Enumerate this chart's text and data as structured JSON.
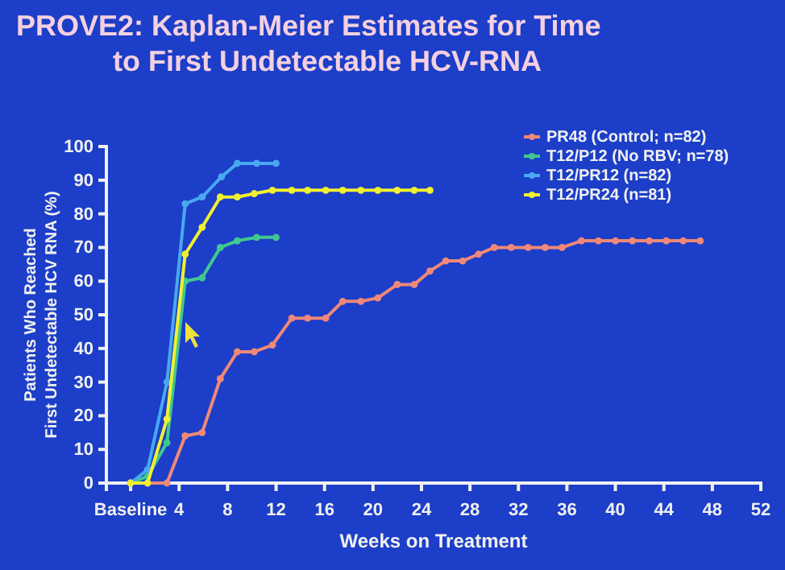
{
  "chart_data": {
    "type": "line",
    "title": "PROVE2: Kaplan-Meier Estimates for Time to First Undetectable HCV-RNA",
    "xlabel": "Weeks on Treatment",
    "ylabel": "Patients Who Reached First Undetectable HCV RNA (%)",
    "xlim": [
      -2,
      52
    ],
    "xticks": [
      {
        "value": 0,
        "label": "Baseline"
      },
      4,
      8,
      12,
      16,
      20,
      24,
      28,
      32,
      36,
      40,
      44,
      48,
      52
    ],
    "ylim": [
      0,
      100
    ],
    "yticks": [
      0,
      10,
      20,
      30,
      40,
      50,
      60,
      70,
      80,
      90,
      100
    ],
    "legend": "top right",
    "marker": "circle",
    "grid": false,
    "series": [
      {
        "name": "PR48 (Control; n=82)",
        "color": "#f08878",
        "x": [
          0,
          1.4,
          3,
          4.5,
          5.9,
          7.4,
          8.8,
          10.2,
          11.7,
          13.3,
          14.6,
          16.1,
          17.5,
          19,
          20.4,
          22,
          23.4,
          24.7,
          26,
          27.4,
          28.7,
          30,
          31.4,
          32.8,
          34.2,
          35.6,
          37.2,
          38.6,
          40,
          41.4,
          42.8,
          44.2,
          45.6,
          47
        ],
        "values": [
          0,
          0,
          0,
          14,
          15,
          31,
          39,
          39,
          41,
          49,
          49,
          49,
          54,
          54,
          55,
          59,
          59,
          63,
          66,
          66,
          68,
          70,
          70,
          70,
          70,
          70,
          72,
          72,
          72,
          72,
          72,
          72,
          72,
          72
        ]
      },
      {
        "name": "T12/P12 (No RBV; n=78)",
        "color": "#40c890",
        "x": [
          0,
          1.4,
          3,
          4.5,
          5.9,
          7.4,
          8.8,
          10.4,
          12
        ],
        "values": [
          0,
          2,
          12,
          60,
          61,
          70,
          72,
          73,
          73
        ]
      },
      {
        "name": "T12/PR12 (n=82)",
        "color": "#48a8f0",
        "x": [
          0,
          1.4,
          3,
          4.5,
          5.9,
          7.5,
          8.8,
          10.4,
          12
        ],
        "values": [
          0,
          4,
          30,
          83,
          85,
          91,
          95,
          95,
          95
        ]
      },
      {
        "name": "T12/PR24 (n=81)",
        "color": "#f0f030",
        "x": [
          0,
          1.4,
          3,
          4.5,
          5.9,
          7.4,
          8.8,
          10.2,
          11.7,
          13.3,
          14.6,
          16.1,
          17.5,
          19,
          20.4,
          22,
          23.4,
          24.7
        ],
        "values": [
          0,
          0,
          19,
          68,
          76,
          85,
          85,
          86,
          87,
          87,
          87,
          87,
          87,
          87,
          87,
          87,
          87,
          87
        ]
      }
    ]
  }
}
